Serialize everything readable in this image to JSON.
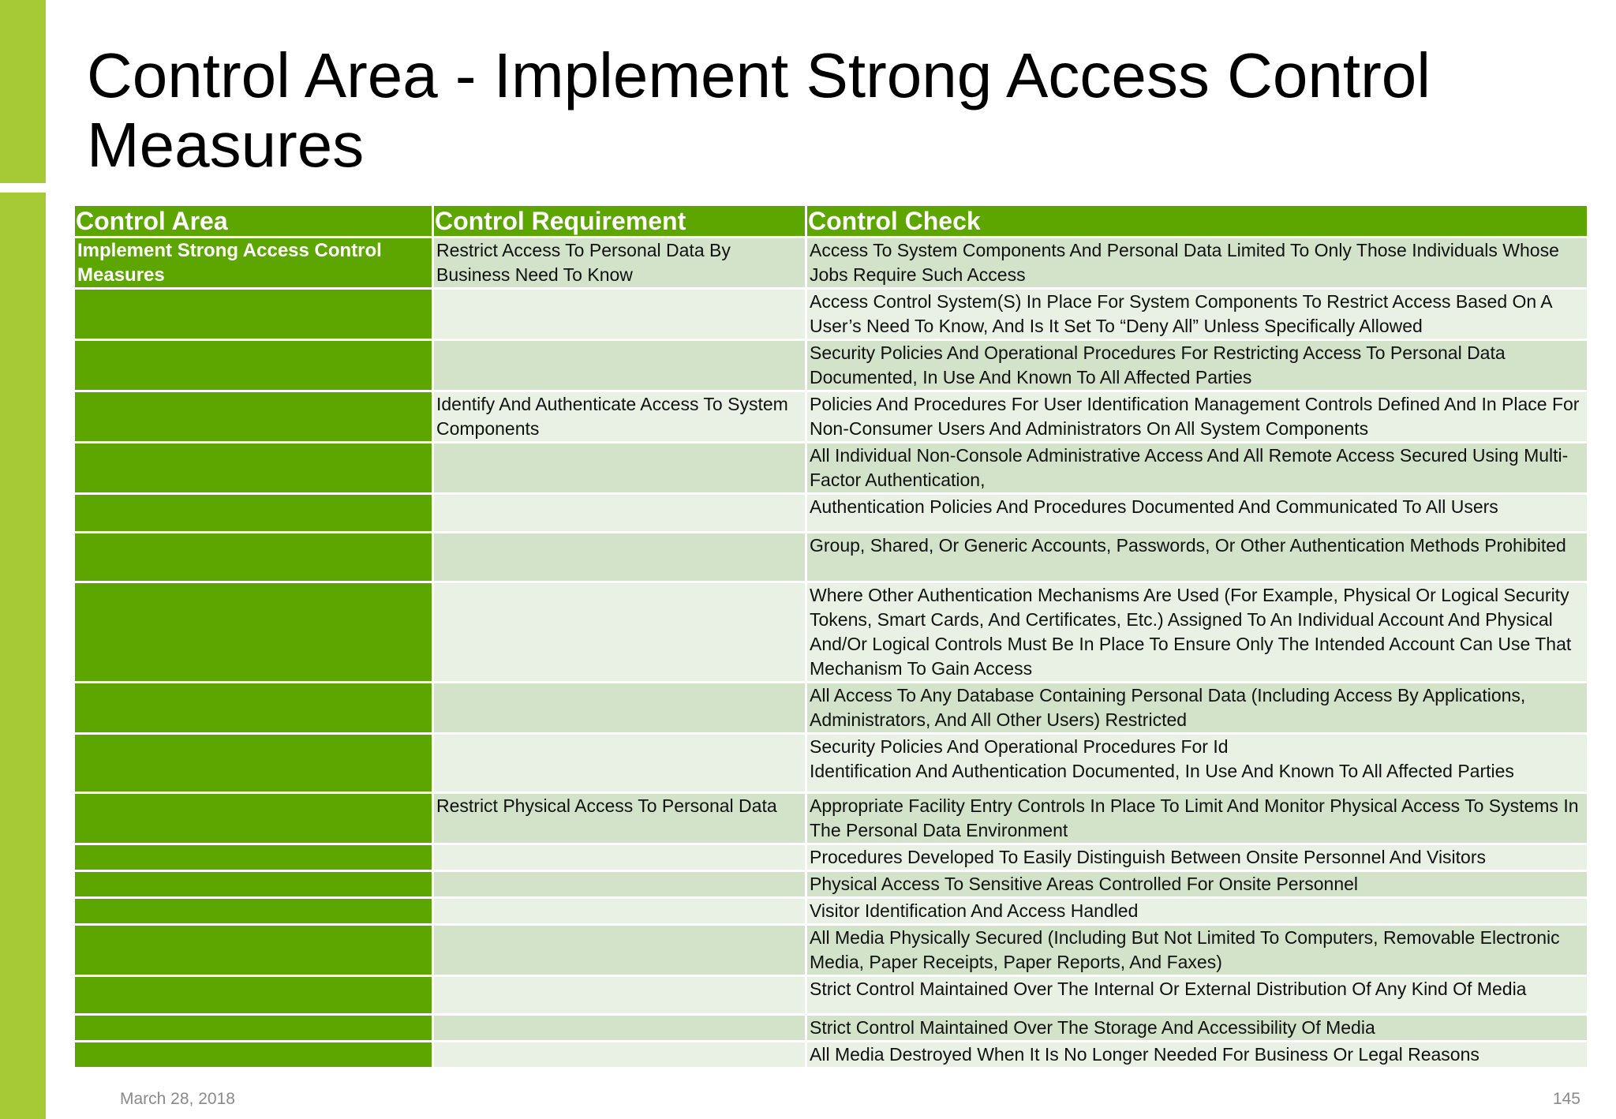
{
  "slide": {
    "title": "Control Area - Implement Strong Access Control Measures",
    "date": "March 28, 2018",
    "page_number": "145",
    "colors": {
      "accent_bar": "#a6c936",
      "header_green": "#5da600",
      "row_dark": "#d3e3c9",
      "row_light": "#e9f0e4"
    }
  },
  "table": {
    "headers": [
      "Control Area",
      "Control Requirement",
      "Control Check"
    ],
    "rows": [
      {
        "area": "Implement Strong Access Control Measures",
        "requirement": "Restrict Access To Personal Data By Business Need To Know",
        "check": "Access To System Components And Personal Data Limited To Only Those Individuals Whose Jobs Require Such Access"
      },
      {
        "area": "",
        "requirement": "",
        "check": "Access Control System(S) In Place For System Components To Restrict Access Based On A User’s Need To Know, And Is It Set To “Deny All” Unless Specifically Allowed"
      },
      {
        "area": "",
        "requirement": "",
        "check": "Security Policies And Operational Procedures For Restricting Access To Personal Data Documented, In Use And Known To All Affected Parties"
      },
      {
        "area": "",
        "requirement": "Identify And Authenticate Access To System Components",
        "check": "Policies And Procedures For User Identification Management Controls Defined And In Place For Non-Consumer Users And Administrators On All System Components"
      },
      {
        "area": "",
        "requirement": "",
        "check": "All Individual Non-Console Administrative Access And All Remote Access Secured Using Multi-Factor Authentication,"
      },
      {
        "area": "",
        "requirement": "",
        "check": "Authentication Policies And Procedures Documented And Communicated To All Users"
      },
      {
        "area": "",
        "requirement": "",
        "check": "Group, Shared, Or Generic Accounts, Passwords, Or Other Authentication Methods Prohibited"
      },
      {
        "area": "",
        "requirement": "",
        "check": "Where Other Authentication Mechanisms Are Used (For Example, Physical Or Logical Security Tokens, Smart Cards, And Certificates, Etc.) Assigned To An Individual Account And Physical And/Or Logical Controls Must Be In Place To Ensure Only The Intended Account Can Use That Mechanism To Gain Access"
      },
      {
        "area": "",
        "requirement": "",
        "check": "All Access To Any Database Containing Personal Data (Including Access By Applications, Administrators, And All Other Users) Restricted"
      },
      {
        "area": "",
        "requirement": "",
        "check": "Security Policies And Operational Procedures For Id\nIdentification And Authentication Documented, In Use And Known To All Affected Parties"
      },
      {
        "area": "",
        "requirement": "Restrict Physical Access To Personal Data",
        "check": "Appropriate Facility Entry Controls In Place To Limit And Monitor Physical Access To Systems In The Personal Data Environment"
      },
      {
        "area": "",
        "requirement": "",
        "check": "Procedures Developed To Easily Distinguish Between Onsite Personnel And Visitors"
      },
      {
        "area": "",
        "requirement": "",
        "check": "Physical Access To Sensitive Areas Controlled For Onsite Personnel"
      },
      {
        "area": "",
        "requirement": "",
        "check": "Visitor Identification And Access Handled"
      },
      {
        "area": "",
        "requirement": "",
        "check": "All Media Physically Secured (Including But Not Limited To Computers, Removable Electronic Media, Paper Receipts, Paper Reports, And Faxes)"
      },
      {
        "area": "",
        "requirement": "",
        "check": "Strict Control Maintained Over The Internal Or External Distribution Of Any Kind Of Media"
      },
      {
        "area": "",
        "requirement": "",
        "check": "Strict Control Maintained Over The Storage And Accessibility Of Media"
      },
      {
        "area": "",
        "requirement": "",
        "check": "All Media Destroyed When It Is No Longer Needed For Business Or Legal Reasons"
      }
    ]
  }
}
